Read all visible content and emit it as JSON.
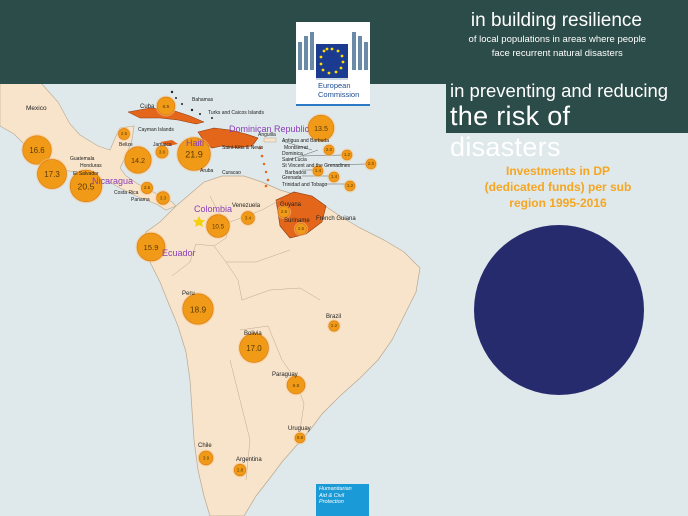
{
  "header": {
    "title": "in building resilience",
    "subtitle_line1": "of local populations in areas where people",
    "subtitle_line2": "face recurrent natural disasters",
    "risk_line1": "in preventing and reducing",
    "risk_line2": "the risk of disasters"
  },
  "ec_logo": {
    "line1": "European",
    "line2": "Commission"
  },
  "investments_title_line1": "Investments in DP",
  "investments_title_line2": "(dedicated funds) per sub",
  "investments_title_line3": "region 1995-2016",
  "humanitarian_line1": "Humanitarian",
  "humanitarian_line2": "Aid & Civil",
  "humanitarian_line3": "Protection",
  "colors": {
    "header": "#2c4c49",
    "land": "#f8e4cb",
    "sea": "#dfe8ea",
    "bubble": "#f09a18",
    "highlight": "#e4661b",
    "circle": "#262b6e",
    "label_purple": "#8a3fb8"
  },
  "country_labels": {
    "mexico": "Mexico",
    "cuba": "Cuba",
    "bahamas": "Bahamas",
    "turks": "Turks and Caicos Islands",
    "cayman": "Cayman Islands",
    "dominican": "Dominican Republic",
    "haiti": "Haiti",
    "jamaica": "Jamaica",
    "belize": "Belize",
    "guatemala": "Guatemala",
    "honduras": "Honduras",
    "elsalvador": "El Salvador",
    "nicaragua": "Nicaragua",
    "costarica": "Costa Rica",
    "panama": "Panama",
    "anguilla": "Anguilla",
    "antigua": "Antigua and Barbuda",
    "montserrat": "Montserrat",
    "dominica": "Dominica",
    "stlucia": "Saint Lucia",
    "stvincent": "St Vincent and the Grenadines",
    "barbados": "Barbados",
    "grenada": "Grenada",
    "trinidad": "Trinidad and Tobago",
    "stkitts": "Saint Kitts & Nevis",
    "aruba": "Aruba",
    "curacao": "Curacao",
    "colombia": "Colombia",
    "venezuela": "Venezuela",
    "guyana": "Guyana",
    "suriname": "Suriname",
    "frenchguiana": "French Guiana",
    "ecuador": "Ecuador",
    "peru": "Peru",
    "brazil": "Brazil",
    "bolivia": "Bolivia",
    "paraguay": "Paraguay",
    "uruguay": "Uruguay",
    "chile": "Chile",
    "argentina": "Argentina"
  },
  "bubbles": [
    {
      "id": "mexico",
      "value": "16.6"
    },
    {
      "id": "guatemala",
      "value": "17.3"
    },
    {
      "id": "central",
      "value": "20.5"
    },
    {
      "id": "belize",
      "value": "2.5"
    },
    {
      "id": "honduras",
      "value": "14.2"
    },
    {
      "id": "costarica",
      "value": "2.6"
    },
    {
      "id": "panama",
      "value": "3.3"
    },
    {
      "id": "cuba",
      "value": "6.5"
    },
    {
      "id": "jamaica",
      "value": "3.0"
    },
    {
      "id": "haiti",
      "value": "21.9"
    },
    {
      "id": "dominican",
      "value": "13.5"
    },
    {
      "id": "antigua",
      "value": "2.0"
    },
    {
      "id": "dominica",
      "value": "1.2"
    },
    {
      "id": "stvincent",
      "value": "2.0"
    },
    {
      "id": "barbados",
      "value": "1.4"
    },
    {
      "id": "grenada",
      "value": "1.4"
    },
    {
      "id": "trinidad",
      "value": "1.2"
    },
    {
      "id": "colombia",
      "value": "10.5"
    },
    {
      "id": "venezuela",
      "value": "3.4"
    },
    {
      "id": "guyana",
      "value": "2.6"
    },
    {
      "id": "suriname",
      "value": "2.5"
    },
    {
      "id": "ecuador",
      "value": "15.9"
    },
    {
      "id": "peru",
      "value": "18.9"
    },
    {
      "id": "bolivia",
      "value": "17.0"
    },
    {
      "id": "brazil",
      "value": "2.2"
    },
    {
      "id": "paraguay",
      "value": "6.5"
    },
    {
      "id": "uruguay",
      "value": "0.9"
    },
    {
      "id": "chile",
      "value": "3.9"
    },
    {
      "id": "argentina",
      "value": "2.8"
    }
  ]
}
